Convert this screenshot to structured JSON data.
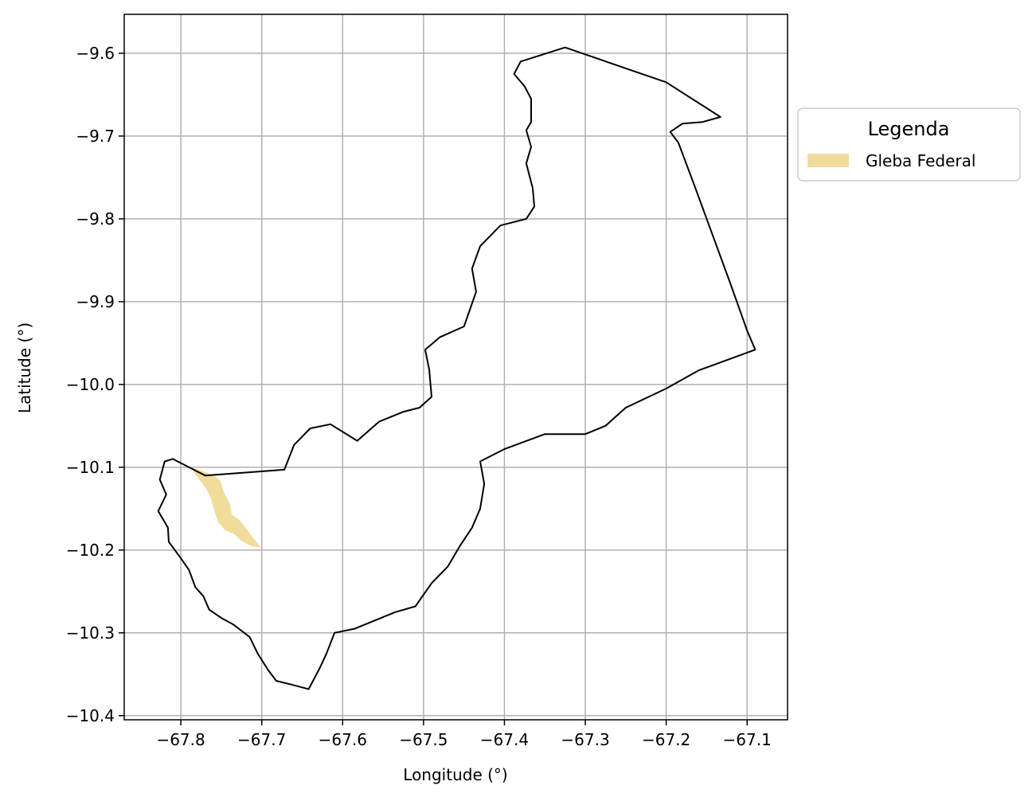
{
  "chart_data": {
    "type": "map",
    "xlabel": "Longitude (°)",
    "ylabel": "Latitude (°)",
    "xlim": [
      -67.87,
      -67.05
    ],
    "ylim": [
      -10.405,
      -9.553
    ],
    "grid": true,
    "x_ticks": [
      -67.8,
      -67.7,
      -67.6,
      -67.5,
      -67.4,
      -67.3,
      -67.2,
      -67.1
    ],
    "x_tick_labels": [
      "−67.8",
      "−67.7",
      "−67.6",
      "−67.5",
      "−67.4",
      "−67.3",
      "−67.2",
      "−67.1"
    ],
    "y_ticks": [
      -9.6,
      -9.7,
      -9.8,
      -9.9,
      -10.0,
      -10.1,
      -10.2,
      -10.3,
      -10.4
    ],
    "y_tick_labels": [
      "−9.6",
      "−9.7",
      "−9.8",
      "−9.9",
      "−10.0",
      "−10.1",
      "−10.2",
      "−10.3",
      "−10.4"
    ],
    "legend": {
      "title": "Legenda",
      "placement": "outside-upper-right",
      "entries": [
        {
          "label": "Gleba Federal",
          "color": "#f0dc9b"
        }
      ]
    },
    "boundary": {
      "stroke": "#000000",
      "coordinates": [
        [
          -67.325,
          -9.593
        ],
        [
          -67.38,
          -9.61
        ],
        [
          -67.388,
          -9.625
        ],
        [
          -67.375,
          -9.64
        ],
        [
          -67.367,
          -9.655
        ],
        [
          -67.367,
          -9.683
        ],
        [
          -67.373,
          -9.693
        ],
        [
          -67.367,
          -9.713
        ],
        [
          -67.373,
          -9.733
        ],
        [
          -67.365,
          -9.763
        ],
        [
          -67.363,
          -9.785
        ],
        [
          -67.373,
          -9.8
        ],
        [
          -67.405,
          -9.808
        ],
        [
          -67.43,
          -9.833
        ],
        [
          -67.44,
          -9.86
        ],
        [
          -67.435,
          -9.888
        ],
        [
          -67.45,
          -9.93
        ],
        [
          -67.48,
          -9.943
        ],
        [
          -67.498,
          -9.958
        ],
        [
          -67.493,
          -9.982
        ],
        [
          -67.49,
          -10.015
        ],
        [
          -67.505,
          -10.028
        ],
        [
          -67.525,
          -10.033
        ],
        [
          -67.555,
          -10.045
        ],
        [
          -67.582,
          -10.068
        ],
        [
          -67.615,
          -10.048
        ],
        [
          -67.64,
          -10.053
        ],
        [
          -67.66,
          -10.073
        ],
        [
          -67.672,
          -10.103
        ],
        [
          -67.77,
          -10.11
        ],
        [
          -67.78,
          -10.105
        ],
        [
          -67.81,
          -10.09
        ],
        [
          -67.82,
          -10.093
        ],
        [
          -67.826,
          -10.115
        ],
        [
          -67.818,
          -10.133
        ],
        [
          -67.828,
          -10.153
        ],
        [
          -67.816,
          -10.173
        ],
        [
          -67.815,
          -10.19
        ],
        [
          -67.8,
          -10.21
        ],
        [
          -67.79,
          -10.224
        ],
        [
          -67.782,
          -10.245
        ],
        [
          -67.772,
          -10.256
        ],
        [
          -67.765,
          -10.272
        ],
        [
          -67.75,
          -10.282
        ],
        [
          -67.735,
          -10.29
        ],
        [
          -67.715,
          -10.305
        ],
        [
          -67.705,
          -10.325
        ],
        [
          -67.692,
          -10.345
        ],
        [
          -67.682,
          -10.358
        ],
        [
          -67.665,
          -10.362
        ],
        [
          -67.642,
          -10.368
        ],
        [
          -67.628,
          -10.342
        ],
        [
          -67.62,
          -10.325
        ],
        [
          -67.61,
          -10.3
        ],
        [
          -67.585,
          -10.295
        ],
        [
          -67.56,
          -10.285
        ],
        [
          -67.535,
          -10.275
        ],
        [
          -67.51,
          -10.268
        ],
        [
          -67.49,
          -10.24
        ],
        [
          -67.47,
          -10.22
        ],
        [
          -67.455,
          -10.195
        ],
        [
          -67.44,
          -10.173
        ],
        [
          -67.43,
          -10.15
        ],
        [
          -67.425,
          -10.12
        ],
        [
          -67.43,
          -10.093
        ],
        [
          -67.4,
          -10.078
        ],
        [
          -67.35,
          -10.06
        ],
        [
          -67.3,
          -10.06
        ],
        [
          -67.275,
          -10.05
        ],
        [
          -67.25,
          -10.028
        ],
        [
          -67.2,
          -10.005
        ],
        [
          -67.16,
          -9.983
        ],
        [
          -67.09,
          -9.958
        ],
        [
          -67.1,
          -9.935
        ],
        [
          -67.12,
          -9.88
        ],
        [
          -67.165,
          -9.76
        ],
        [
          -67.185,
          -9.708
        ],
        [
          -67.195,
          -9.695
        ],
        [
          -67.18,
          -9.685
        ],
        [
          -67.155,
          -9.683
        ],
        [
          -67.133,
          -9.677
        ],
        [
          -67.2,
          -9.635
        ],
        [
          -67.325,
          -9.593
        ]
      ]
    },
    "areas": [
      {
        "name": "Gleba Federal",
        "fill": "#f0dc9b",
        "coordinates": [
          [
            -67.785,
            -10.102
          ],
          [
            -67.772,
            -10.106
          ],
          [
            -67.76,
            -10.11
          ],
          [
            -67.752,
            -10.117
          ],
          [
            -67.748,
            -10.13
          ],
          [
            -67.74,
            -10.145
          ],
          [
            -67.738,
            -10.158
          ],
          [
            -67.73,
            -10.163
          ],
          [
            -67.722,
            -10.172
          ],
          [
            -67.712,
            -10.185
          ],
          [
            -67.703,
            -10.196
          ],
          [
            -67.713,
            -10.194
          ],
          [
            -67.725,
            -10.188
          ],
          [
            -67.733,
            -10.18
          ],
          [
            -67.745,
            -10.175
          ],
          [
            -67.753,
            -10.166
          ],
          [
            -67.758,
            -10.151
          ],
          [
            -67.762,
            -10.137
          ],
          [
            -67.768,
            -10.125
          ],
          [
            -67.775,
            -10.116
          ],
          [
            -67.781,
            -10.108
          ],
          [
            -67.785,
            -10.102
          ]
        ]
      }
    ]
  }
}
